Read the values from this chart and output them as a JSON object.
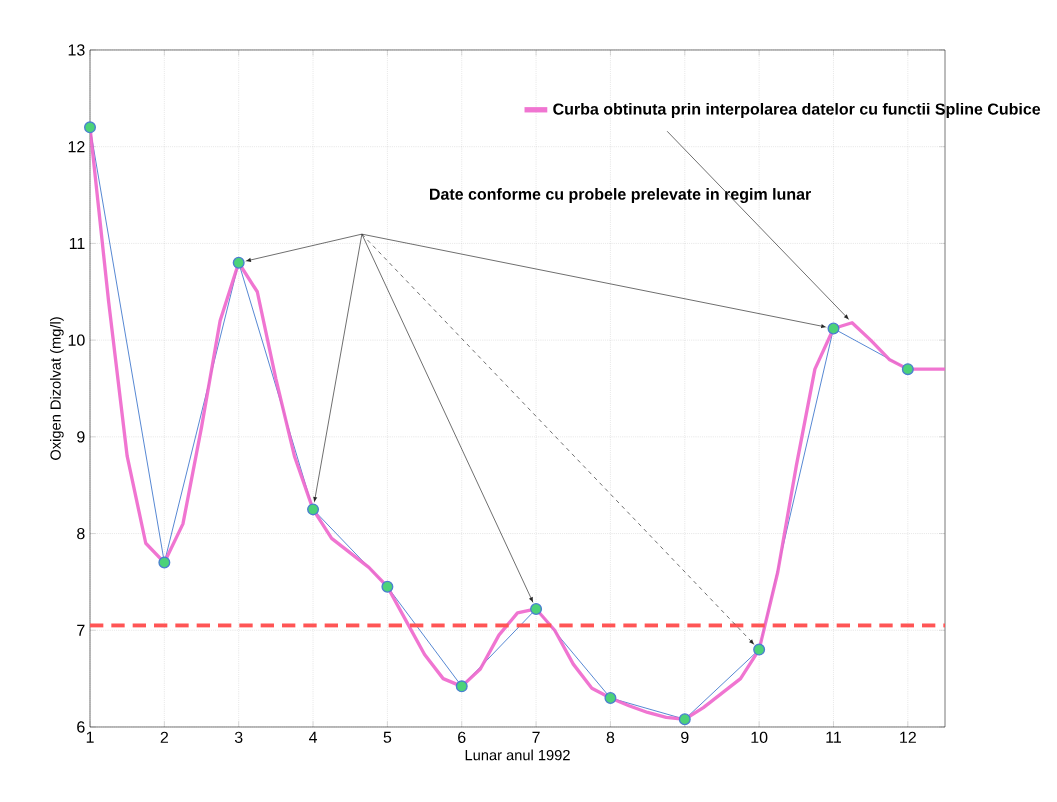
{
  "chart_data": {
    "type": "line",
    "xlabel": "Lunar anul 1992",
    "ylabel": "Oxigen Dizolvat  (mg/l)",
    "xlim": [
      1,
      12.5
    ],
    "ylim": [
      6,
      13
    ],
    "xticks": [
      1,
      2,
      3,
      4,
      5,
      6,
      7,
      8,
      9,
      10,
      11,
      12
    ],
    "yticks": [
      6,
      7,
      8,
      9,
      10,
      11,
      12,
      13
    ],
    "grid": true,
    "legend": "top right",
    "series": [
      {
        "marker": "circle",
        "color": "#4a7fd0",
        "x": [
          1,
          2,
          3,
          4,
          5,
          6,
          7,
          8,
          9,
          10,
          11,
          12
        ],
        "values": [
          12.2,
          7.7,
          10.8,
          8.25,
          7.45,
          6.42,
          7.22,
          6.3,
          6.08,
          6.8,
          10.12,
          9.7
        ]
      },
      {
        "marker": "none",
        "name": "Curba obtinuta prin interpolarea datelor cu functii Spline Cubice",
        "color": "#ee66cc",
        "x": [
          1,
          1.25,
          1.5,
          1.75,
          2,
          2.25,
          2.5,
          2.75,
          3,
          3.25,
          3.5,
          3.75,
          4,
          4.25,
          4.5,
          4.75,
          5,
          5.25,
          5.5,
          5.75,
          6,
          6.25,
          6.5,
          6.75,
          7,
          7.25,
          7.5,
          7.75,
          8,
          8.25,
          8.5,
          8.75,
          9,
          9.25,
          9.5,
          9.75,
          10,
          10.25,
          10.5,
          10.75,
          11,
          11.25,
          11.5,
          11.75,
          12,
          12.25,
          12.5
        ],
        "values": [
          12.2,
          10.4,
          8.8,
          7.9,
          7.7,
          8.1,
          9.1,
          10.2,
          10.8,
          10.5,
          9.6,
          8.8,
          8.25,
          7.95,
          7.8,
          7.65,
          7.45,
          7.1,
          6.75,
          6.5,
          6.42,
          6.6,
          6.95,
          7.18,
          7.22,
          7.0,
          6.65,
          6.4,
          6.3,
          6.22,
          6.15,
          6.1,
          6.08,
          6.2,
          6.35,
          6.5,
          6.8,
          7.6,
          8.7,
          9.7,
          10.12,
          10.18,
          10.0,
          9.8,
          9.7,
          9.7,
          9.7
        ]
      }
    ],
    "ref_lines": [
      {
        "axis": "y",
        "value": 7.05,
        "color": "#ff5555",
        "line_style": "dashed"
      }
    ],
    "annotations": [
      "Date conforme cu probele prelevate in regim lunar"
    ]
  }
}
